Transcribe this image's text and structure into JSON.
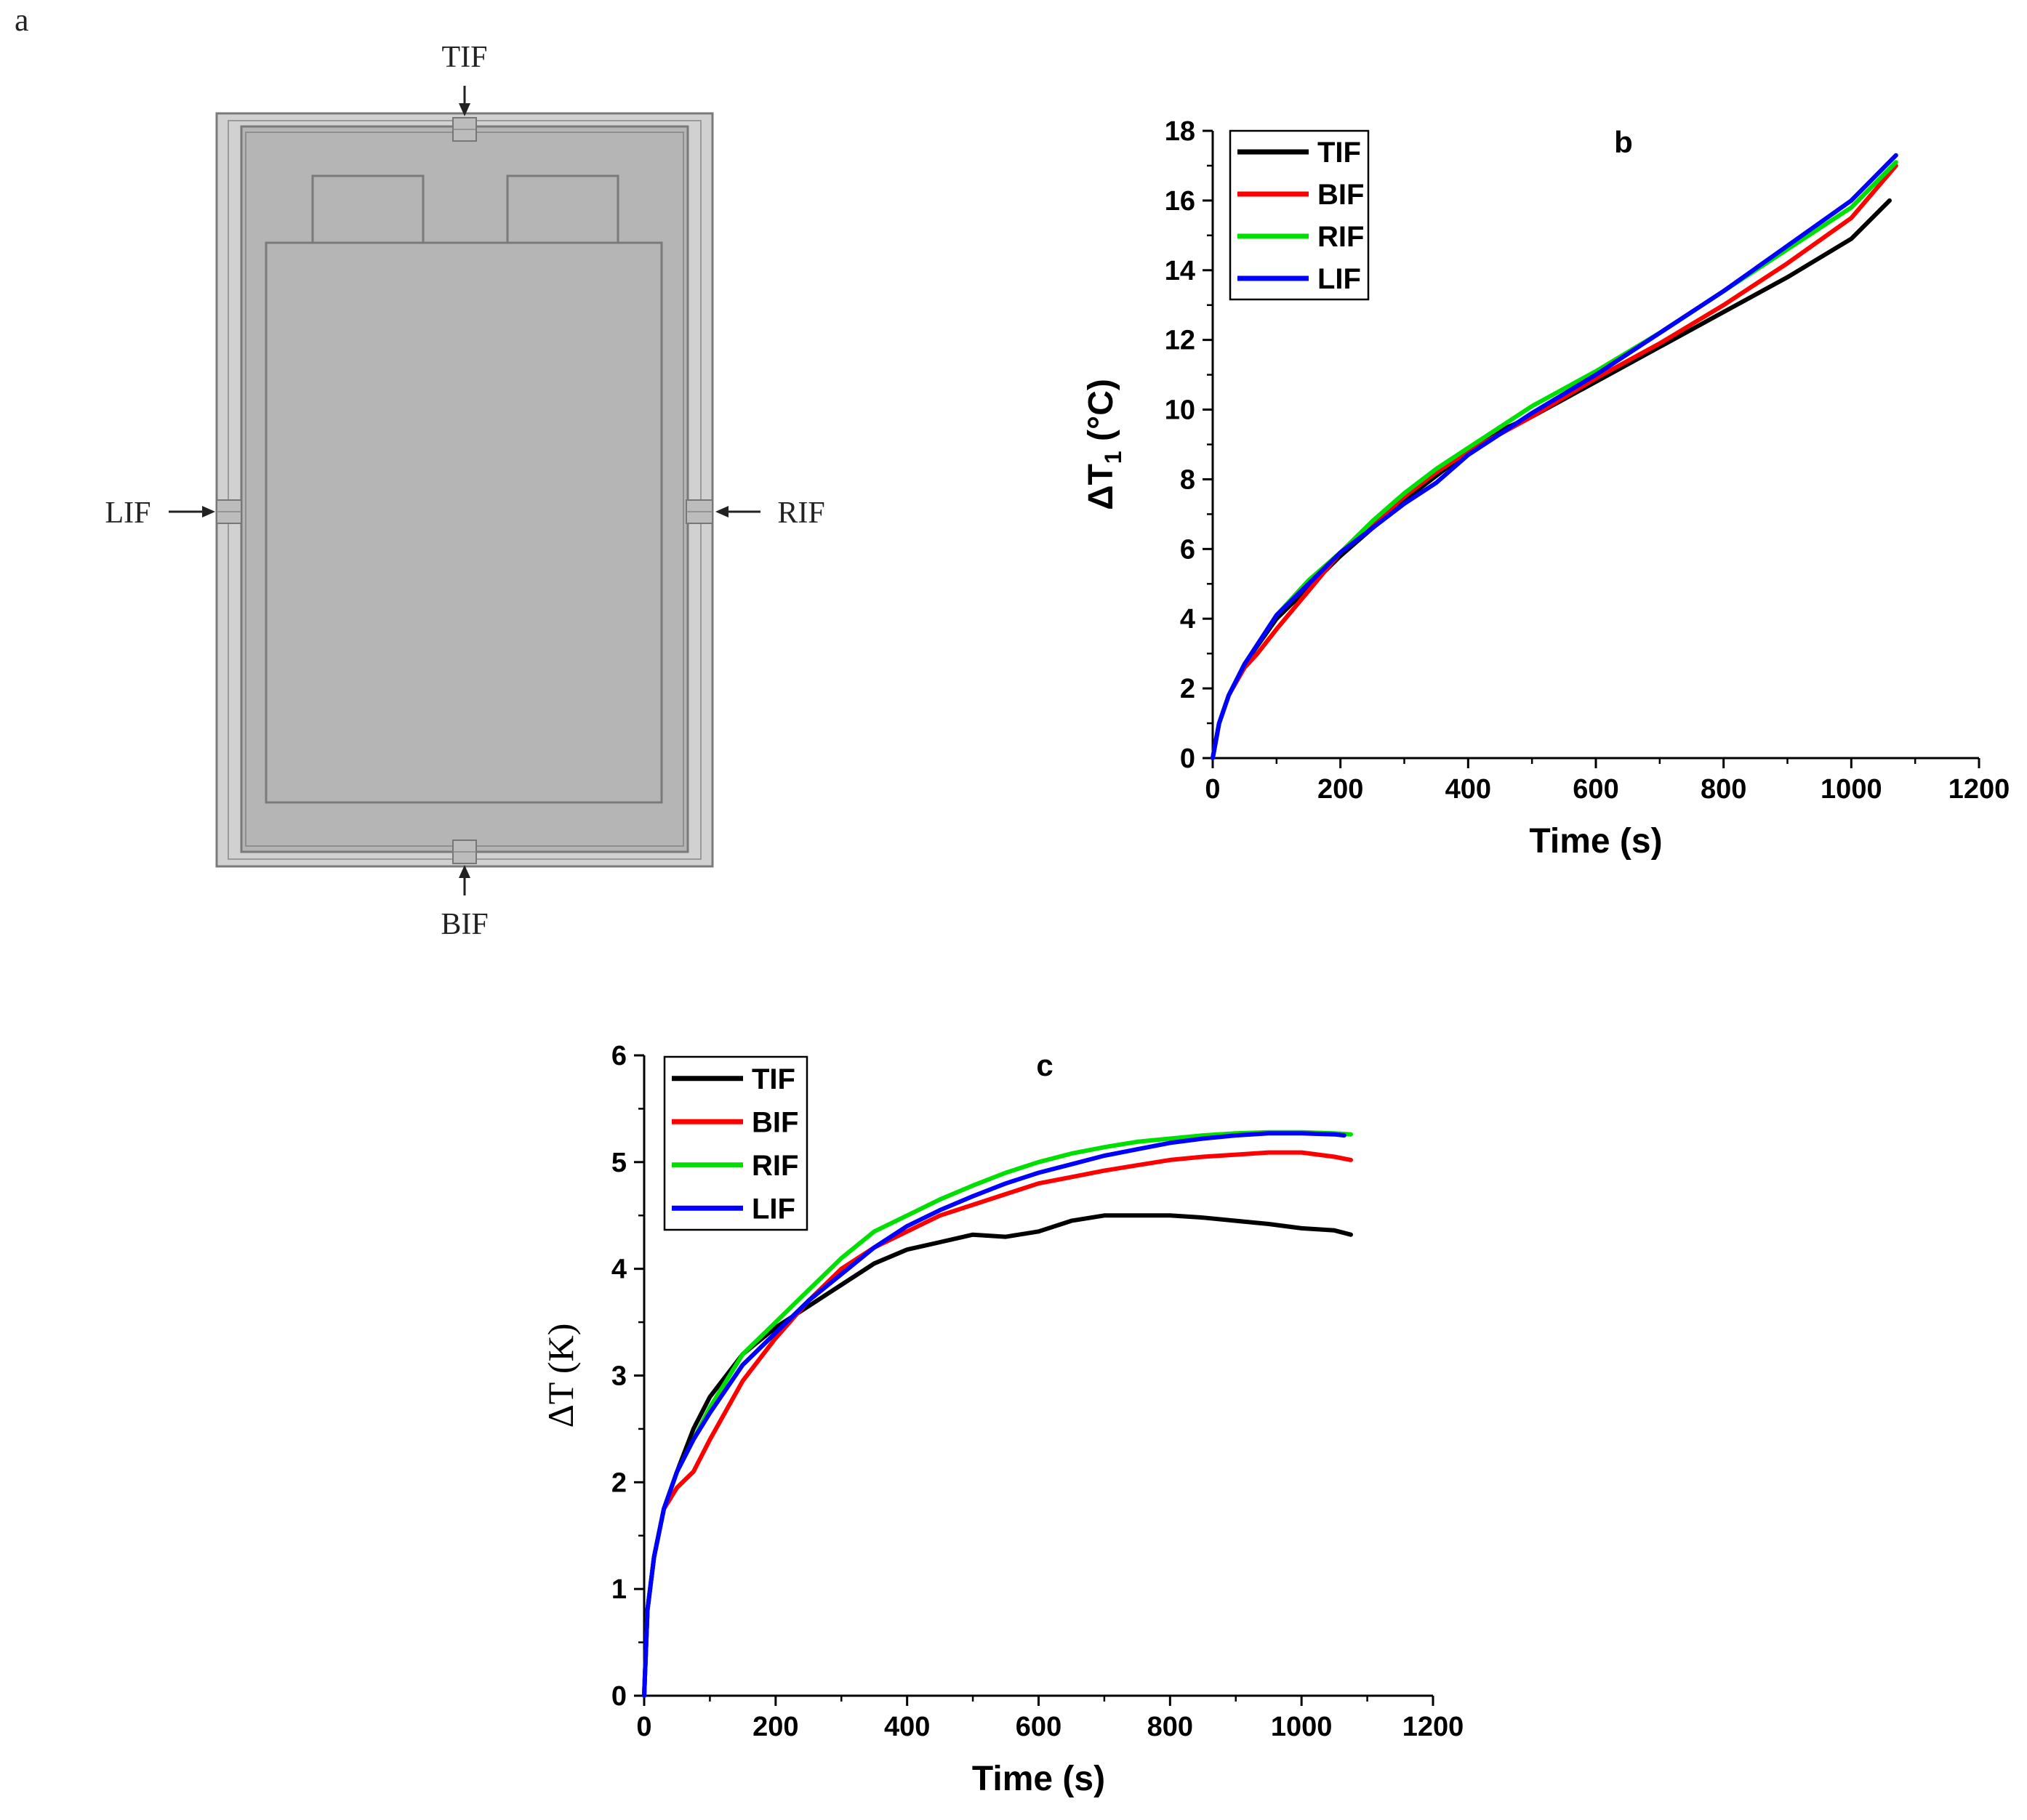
{
  "colors": {
    "TIF": "#000000",
    "BIF": "#ff0000",
    "RIF": "#00e000",
    "LIF": "#0000ff"
  },
  "panel_a": {
    "label": "a",
    "markers": {
      "top": "TIF",
      "left": "LIF",
      "right": "RIF",
      "bottom": "BIF"
    }
  },
  "chart_data": [
    {
      "panel": "b",
      "type": "line",
      "title": "b",
      "xlabel": "Time (s)",
      "ylabel": "ΔT",
      "ylabel_sub": "1",
      "ylabel_unit": " (°C)",
      "xlim": [
        0,
        1200
      ],
      "ylim": [
        0,
        18
      ],
      "xticks": [
        0,
        200,
        400,
        600,
        800,
        1000,
        1200
      ],
      "yticks": [
        0,
        2,
        4,
        6,
        8,
        10,
        12,
        14,
        16,
        18
      ],
      "legend": "top-left",
      "series": [
        {
          "name": "TIF",
          "x": [
            0,
            10,
            25,
            50,
            100,
            150,
            200,
            250,
            300,
            350,
            400,
            450,
            500,
            550,
            600,
            700,
            800,
            900,
            1000,
            1060
          ],
          "y": [
            0,
            1.0,
            1.8,
            2.7,
            4.0,
            4.9,
            5.8,
            6.6,
            7.4,
            8.1,
            8.8,
            9.4,
            9.8,
            10.3,
            10.8,
            11.8,
            12.8,
            13.8,
            14.9,
            16.0
          ]
        },
        {
          "name": "BIF",
          "x": [
            0,
            10,
            25,
            50,
            70,
            100,
            150,
            200,
            250,
            300,
            350,
            400,
            450,
            500,
            600,
            700,
            800,
            900,
            1000,
            1070
          ],
          "y": [
            0,
            1.0,
            1.8,
            2.6,
            3.0,
            3.7,
            4.8,
            5.9,
            6.7,
            7.5,
            8.2,
            8.8,
            9.3,
            9.8,
            10.9,
            11.9,
            13.0,
            14.2,
            15.5,
            17.0
          ]
        },
        {
          "name": "RIF",
          "x": [
            0,
            10,
            25,
            50,
            100,
            150,
            200,
            250,
            300,
            350,
            400,
            450,
            500,
            600,
            700,
            800,
            900,
            1000,
            1070
          ],
          "y": [
            0,
            1.0,
            1.8,
            2.7,
            4.1,
            5.1,
            5.9,
            6.8,
            7.6,
            8.3,
            8.9,
            9.5,
            10.1,
            11.1,
            12.2,
            13.4,
            14.6,
            15.8,
            17.1
          ]
        },
        {
          "name": "LIF",
          "x": [
            0,
            10,
            25,
            50,
            100,
            150,
            200,
            250,
            300,
            350,
            400,
            450,
            500,
            600,
            700,
            800,
            900,
            1000,
            1070
          ],
          "y": [
            0,
            1.0,
            1.8,
            2.7,
            4.1,
            5.0,
            5.9,
            6.6,
            7.3,
            7.9,
            8.7,
            9.3,
            9.9,
            11.0,
            12.2,
            13.4,
            14.7,
            16.0,
            17.3
          ]
        }
      ]
    },
    {
      "panel": "c",
      "type": "line",
      "title": "c",
      "xlabel": "Time (s)",
      "ylabel": "ΔT (K)",
      "xlim": [
        0,
        1200
      ],
      "ylim": [
        0,
        6
      ],
      "xticks": [
        0,
        200,
        400,
        600,
        800,
        1000,
        1200
      ],
      "yticks": [
        0,
        1,
        2,
        3,
        4,
        5,
        6
      ],
      "legend": "top-left",
      "series": [
        {
          "name": "TIF",
          "x": [
            0,
            5,
            15,
            30,
            50,
            75,
            100,
            150,
            200,
            250,
            300,
            350,
            400,
            450,
            500,
            550,
            600,
            650,
            700,
            750,
            800,
            850,
            900,
            950,
            1000,
            1050,
            1075
          ],
          "y": [
            0,
            0.8,
            1.3,
            1.75,
            2.1,
            2.5,
            2.8,
            3.2,
            3.45,
            3.65,
            3.85,
            4.05,
            4.18,
            4.25,
            4.32,
            4.3,
            4.35,
            4.45,
            4.5,
            4.5,
            4.5,
            4.48,
            4.45,
            4.42,
            4.38,
            4.36,
            4.32
          ]
        },
        {
          "name": "BIF",
          "x": [
            0,
            5,
            15,
            30,
            50,
            75,
            100,
            150,
            200,
            250,
            300,
            350,
            400,
            450,
            500,
            550,
            600,
            650,
            700,
            750,
            800,
            850,
            900,
            950,
            1000,
            1050,
            1075
          ],
          "y": [
            0,
            0.8,
            1.3,
            1.75,
            1.95,
            2.1,
            2.4,
            2.95,
            3.35,
            3.7,
            4.0,
            4.2,
            4.35,
            4.5,
            4.6,
            4.7,
            4.8,
            4.86,
            4.92,
            4.97,
            5.02,
            5.05,
            5.07,
            5.09,
            5.09,
            5.05,
            5.02
          ]
        },
        {
          "name": "RIF",
          "x": [
            0,
            5,
            15,
            30,
            50,
            75,
            100,
            150,
            200,
            250,
            300,
            350,
            400,
            450,
            500,
            550,
            600,
            650,
            700,
            750,
            800,
            850,
            900,
            950,
            1000,
            1050,
            1075
          ],
          "y": [
            0,
            0.8,
            1.3,
            1.75,
            2.1,
            2.4,
            2.7,
            3.2,
            3.5,
            3.8,
            4.1,
            4.35,
            4.5,
            4.65,
            4.78,
            4.9,
            5.0,
            5.08,
            5.14,
            5.19,
            5.22,
            5.25,
            5.27,
            5.28,
            5.28,
            5.27,
            5.26
          ]
        },
        {
          "name": "LIF",
          "x": [
            0,
            5,
            15,
            30,
            50,
            75,
            100,
            150,
            200,
            250,
            300,
            350,
            400,
            450,
            500,
            550,
            600,
            650,
            700,
            750,
            800,
            850,
            900,
            950,
            1000,
            1050,
            1065
          ],
          "y": [
            0,
            0.8,
            1.3,
            1.75,
            2.1,
            2.4,
            2.65,
            3.1,
            3.4,
            3.7,
            3.95,
            4.2,
            4.4,
            4.55,
            4.68,
            4.8,
            4.9,
            4.98,
            5.06,
            5.12,
            5.18,
            5.22,
            5.25,
            5.27,
            5.27,
            5.26,
            5.25
          ]
        }
      ]
    }
  ]
}
